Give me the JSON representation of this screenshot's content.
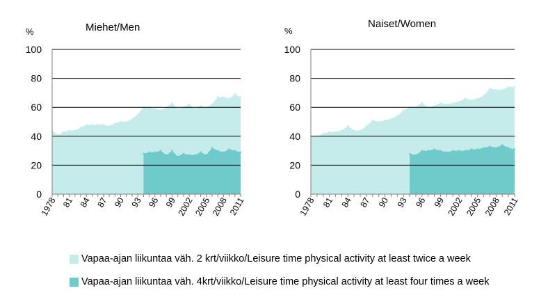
{
  "colors": {
    "light": "#c6ebeb",
    "dark": "#6fcaca",
    "gridline": "#000000",
    "axis": "#7f7f7f"
  },
  "legend": [
    {
      "label": "Vapaa-ajan liikuntaa väh. 2 krt/viikko/Leisure time physical activity at least twice a week",
      "color": "#c6ebeb"
    },
    {
      "label": "Vapaa-ajan liikuntaa väh. 4krt/viikko/Leisure time physical activity at least four times a week",
      "color": "#6fcaca"
    }
  ],
  "chart_data": [
    {
      "type": "area",
      "title": "Miehet/Men",
      "ylabel": "%",
      "ylim": [
        0,
        100
      ],
      "yticks": [
        0,
        20,
        40,
        60,
        80,
        100
      ],
      "x": [
        1978,
        1979,
        1980,
        1981,
        1982,
        1983,
        1984,
        1985,
        1986,
        1987,
        1988,
        1989,
        1990,
        1991,
        1992,
        1993,
        1994,
        1995,
        1996,
        1997,
        1998,
        1999,
        2000,
        2001,
        2002,
        2003,
        2004,
        2005,
        2006,
        2007,
        2008,
        2009,
        2010,
        2011
      ],
      "xticklabels": [
        "1978",
        "81",
        "84",
        "87",
        "90",
        "93",
        "96",
        "99",
        "2002",
        "2005",
        "2008",
        "2011"
      ],
      "series": [
        {
          "name": "Vapaa-ajan liikuntaa väh. 2 krt/viikko/Leisure time physical activity at least twice a week",
          "values": [
            44,
            41,
            43,
            44,
            44,
            46,
            48,
            48,
            48,
            48,
            47,
            49,
            50,
            50,
            52,
            55,
            60,
            60,
            59,
            58,
            60,
            63,
            59,
            60,
            62,
            59,
            61,
            60,
            62,
            67,
            67,
            66,
            69,
            67
          ]
        },
        {
          "name": "Vapaa-ajan liikuntaa väh. 4krt/viikko/Leisure time physical activity at least four times a week",
          "x": [
            1994,
            1995,
            1996,
            1997,
            1998,
            1999,
            2000,
            2001,
            2002,
            2003,
            2004,
            2005,
            2006,
            2007,
            2008,
            2009,
            2010,
            2011
          ],
          "values": [
            28,
            29,
            29,
            30,
            27,
            30,
            26,
            28,
            27,
            27,
            29,
            27,
            32,
            30,
            29,
            31,
            30,
            29
          ]
        }
      ]
    },
    {
      "type": "area",
      "title": "Naiset/Women",
      "ylabel": "%",
      "ylim": [
        0,
        100
      ],
      "yticks": [
        0,
        20,
        40,
        60,
        80,
        100
      ],
      "x": [
        1978,
        1979,
        1980,
        1981,
        1982,
        1983,
        1984,
        1985,
        1986,
        1987,
        1988,
        1989,
        1990,
        1991,
        1992,
        1993,
        1994,
        1995,
        1996,
        1997,
        1998,
        1999,
        2000,
        2001,
        2002,
        2003,
        2004,
        2005,
        2006,
        2007,
        2008,
        2009,
        2010,
        2011
      ],
      "xticklabels": [
        "1978",
        "81",
        "84",
        "87",
        "90",
        "93",
        "96",
        "99",
        "2002",
        "2005",
        "2008",
        "2011"
      ],
      "series": [
        {
          "name": "Vapaa-ajan liikuntaa väh. 2 krt/viikko/Leisure time physical activity at least twice a week",
          "values": [
            40,
            40,
            42,
            43,
            43,
            44,
            47,
            44,
            44,
            47,
            51,
            50,
            51,
            52,
            54,
            58,
            60,
            60,
            63,
            60,
            61,
            63,
            62,
            63,
            64,
            66,
            65,
            66,
            68,
            73,
            72,
            72,
            74,
            74
          ]
        },
        {
          "name": "Vapaa-ajan liikuntaa väh. 4krt/viikko/Leisure time physical activity at least four times a week",
          "x": [
            1994,
            1995,
            1996,
            1997,
            1998,
            1999,
            2000,
            2001,
            2002,
            2003,
            2004,
            2005,
            2006,
            2007,
            2008,
            2009,
            2010,
            2011
          ],
          "values": [
            28,
            27,
            30,
            30,
            31,
            30,
            29,
            30,
            30,
            30,
            31,
            31,
            32,
            33,
            32,
            34,
            32,
            31
          ]
        }
      ]
    }
  ]
}
